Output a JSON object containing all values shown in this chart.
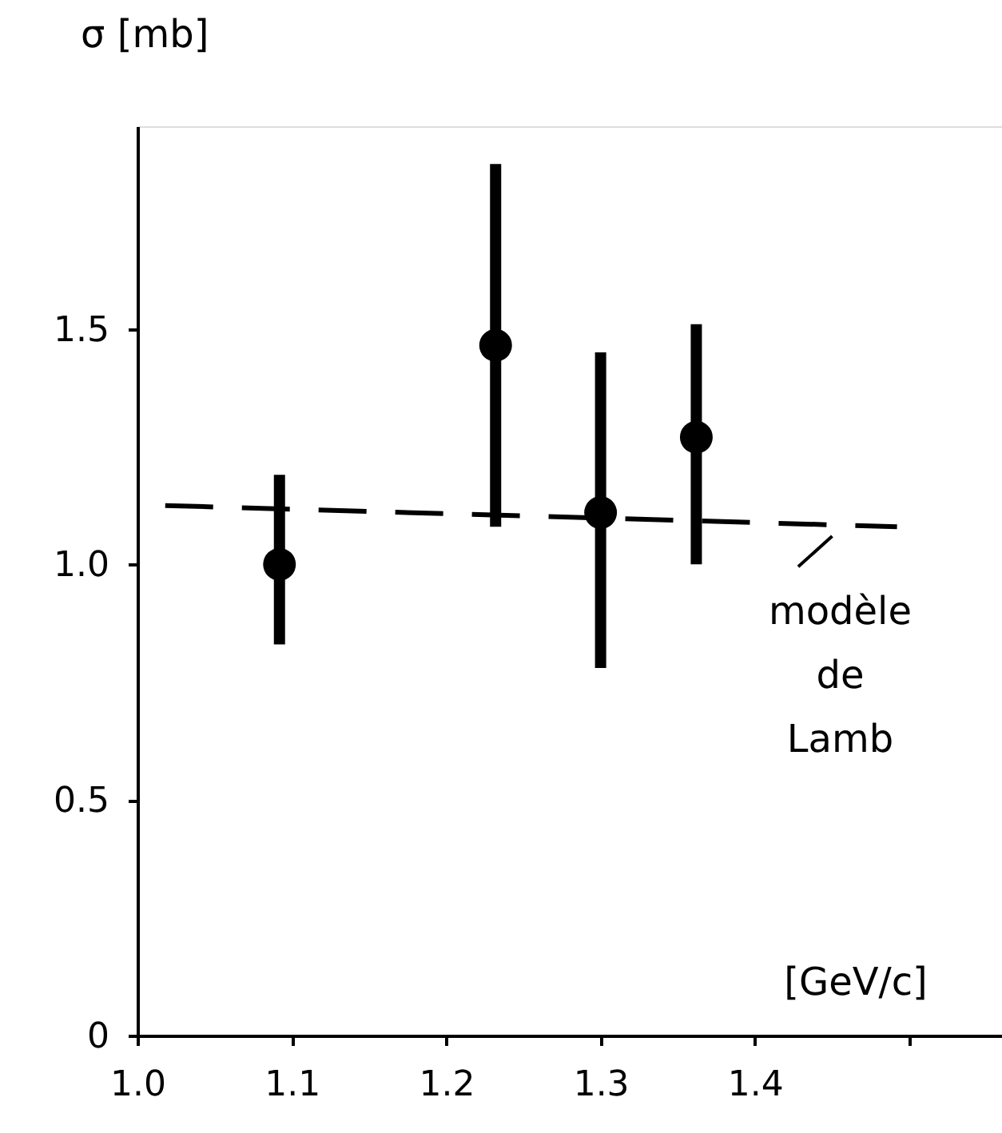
{
  "chart_data": {
    "type": "scatter",
    "xlabel": "[GeV/c]",
    "ylabel": "σ [mb]",
    "xlim": [
      1.0,
      1.56
    ],
    "ylim": [
      0,
      1.93
    ],
    "xticks": [
      {
        "value": 1.0,
        "label": "1.0"
      },
      1.1,
      1.2,
      1.3,
      1.4,
      {
        "value": 1.5,
        "label": null
      }
    ],
    "yticks": [
      0,
      0.5,
      {
        "value": 1.0,
        "label": "1.0"
      },
      1.5
    ],
    "grid": false,
    "series": [
      {
        "color": "#000000",
        "marker": "circle",
        "x": [
          1.092,
          1.232,
          1.3,
          1.362
        ],
        "values": [
          1.0,
          1.465,
          1.11,
          1.27
        ],
        "errors": [
          [
            0.83,
            1.19
          ],
          [
            1.08,
            1.85
          ],
          [
            0.78,
            1.45
          ],
          [
            1.0,
            1.51
          ]
        ]
      },
      {
        "type": "line",
        "color": "#000000",
        "line_style": "dashed",
        "x": [
          1.018,
          1.492
        ],
        "values": [
          1.125,
          1.08
        ]
      }
    ],
    "annotations": [
      {
        "text": "modèle de Lamb",
        "x": 1.45,
        "y": 1.08
      }
    ]
  }
}
